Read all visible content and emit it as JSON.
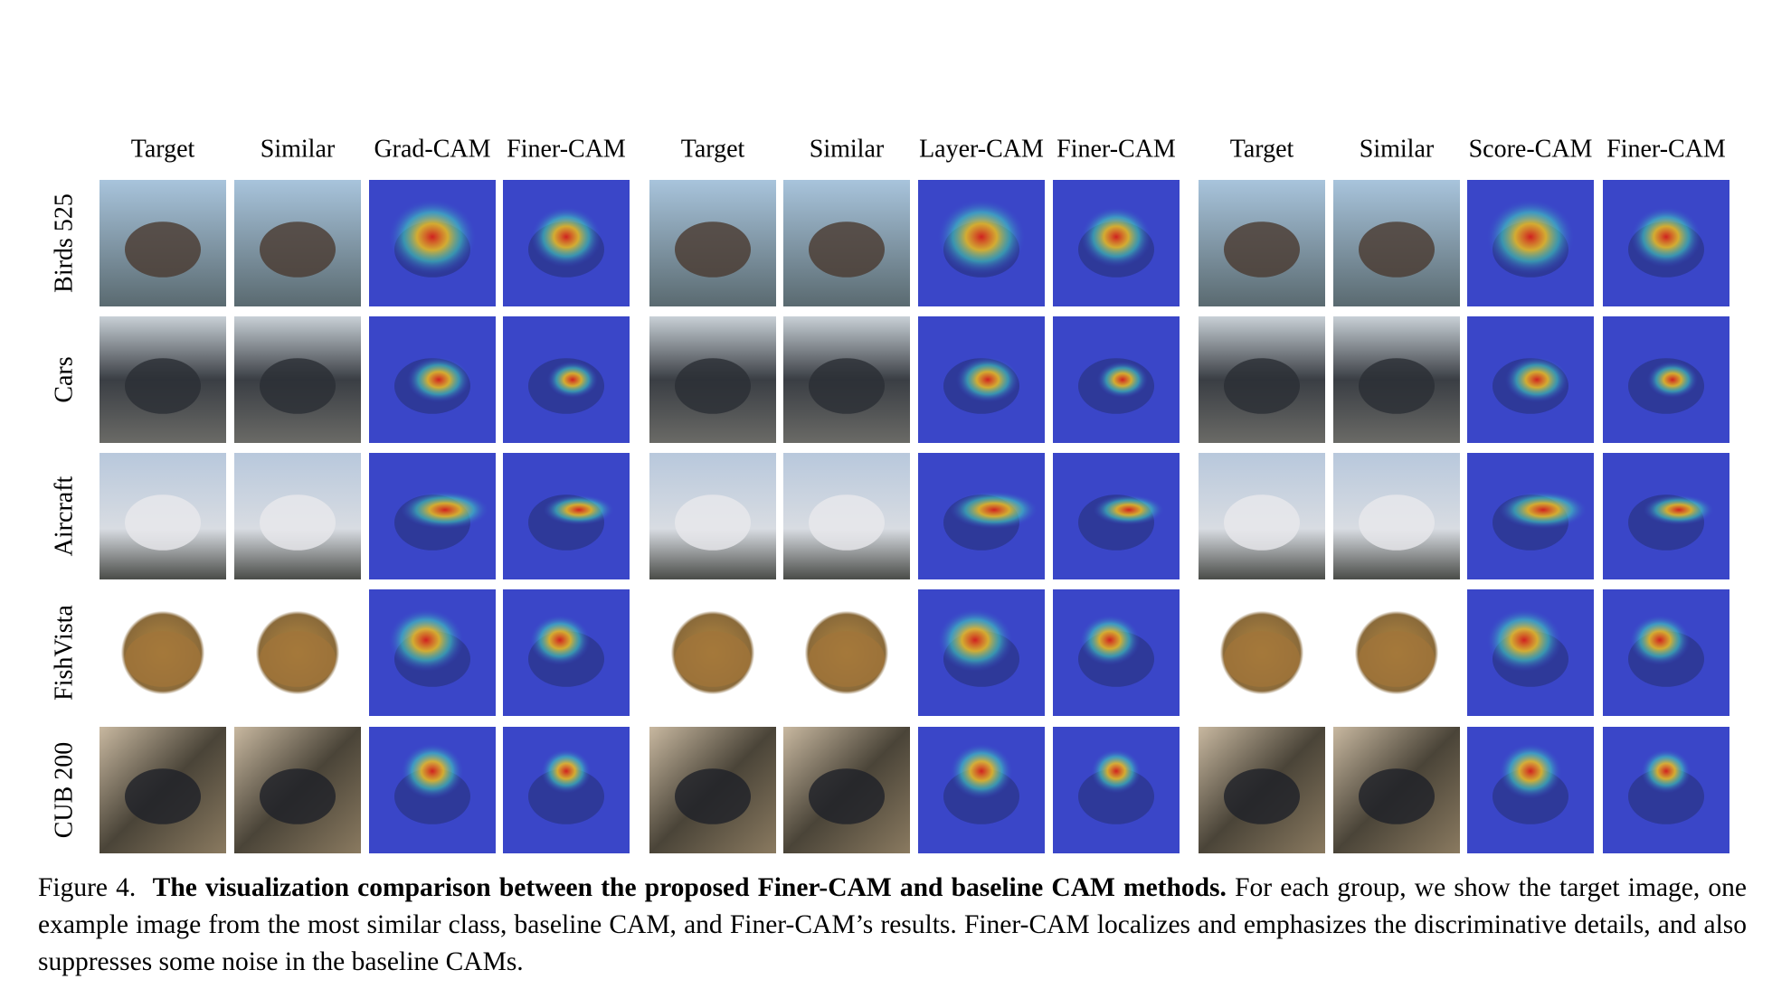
{
  "columns": [
    "Target",
    "Similar",
    "Grad-CAM",
    "Finer-CAM",
    "Target",
    "Similar",
    "Layer-CAM",
    "Finer-CAM",
    "Target",
    "Similar",
    "Score-CAM",
    "Finer-CAM"
  ],
  "rows": [
    "Birds 525",
    "Cars",
    "Aircraft",
    "FishVista",
    "CUB 200"
  ],
  "caption": {
    "label": "Figure 4.",
    "title": "The visualization comparison between the proposed Finer-CAM and baseline CAM methods.",
    "text": "For each group, we show the target image, one example image from the most similar class, baseline CAM, and Finer-CAM’s results. Finer-CAM localizes and emphasizes the discriminative details, and also suppresses some noise in the baseline CAMs."
  }
}
